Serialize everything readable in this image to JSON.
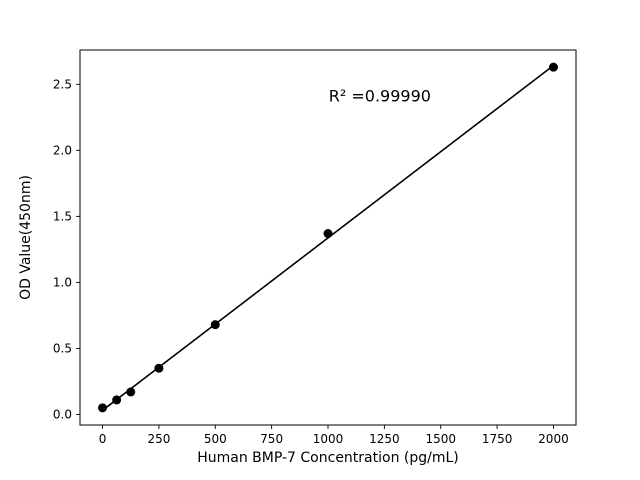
{
  "chart_data": {
    "type": "scatter",
    "title": "",
    "xlabel": "Human BMP-7 Concentration (pg/mL)",
    "ylabel": "OD Value(450nm)",
    "annotation": {
      "text": "R² =0.99990",
      "x": 1230,
      "y": 2.37
    },
    "x": [
      0,
      62.5,
      125,
      250,
      500,
      1000,
      2000
    ],
    "y": [
      0.05,
      0.11,
      0.17,
      0.35,
      0.68,
      1.37,
      2.63
    ],
    "fit_line": true,
    "xticks": [
      0,
      250,
      500,
      750,
      1000,
      1250,
      1500,
      1750,
      2000
    ],
    "xtick_labels": [
      "0",
      "250",
      "500",
      "750",
      "1000",
      "1250",
      "1500",
      "1750",
      "2000"
    ],
    "yticks": [
      0.0,
      0.5,
      1.0,
      1.5,
      2.0,
      2.5
    ],
    "ytick_labels": [
      "0.0",
      "0.5",
      "1.0",
      "1.5",
      "2.0",
      "2.5"
    ],
    "xlim": [
      -100,
      2100
    ],
    "ylim": [
      -0.08,
      2.76
    ],
    "grid": false,
    "legend": null,
    "marker_color": "#000000",
    "line_color": "#000000",
    "axis_color": "#000000",
    "background": "#ffffff"
  }
}
